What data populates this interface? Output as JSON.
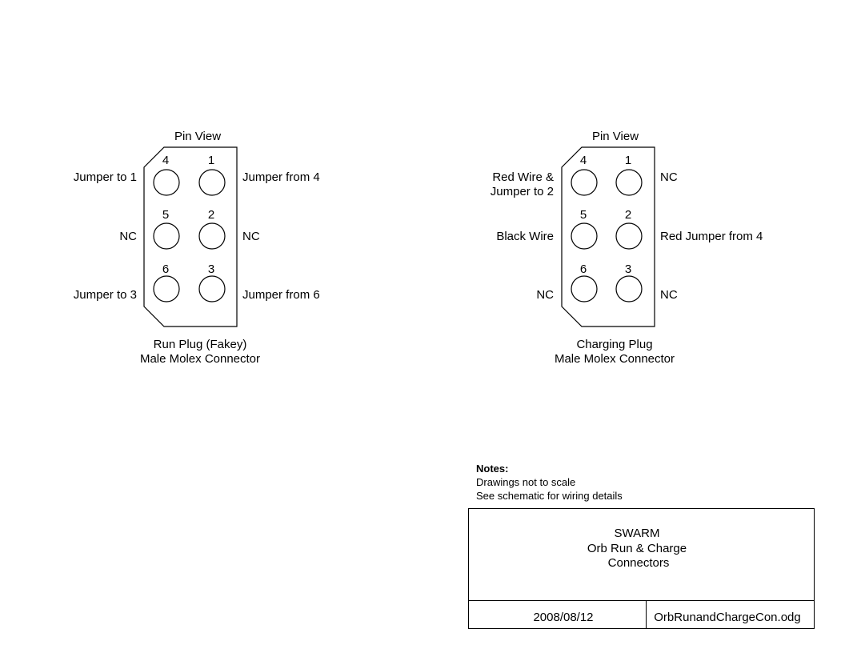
{
  "connectors": [
    {
      "header": "Pin View",
      "pins": {
        "p4": "4",
        "p1": "1",
        "p5": "5",
        "p2": "2",
        "p6": "6",
        "p3": "3"
      },
      "left_labels": {
        "row1": [
          "Jumper to 1"
        ],
        "row2": [
          "NC"
        ],
        "row3": [
          "Jumper to 3"
        ]
      },
      "right_labels": {
        "row1": "Jumper from 4",
        "row2": "NC",
        "row3": "Jumper from 6"
      },
      "caption": [
        "Run Plug (Fakey)",
        "Male Molex Connector"
      ]
    },
    {
      "header": "Pin View",
      "pins": {
        "p4": "4",
        "p1": "1",
        "p5": "5",
        "p2": "2",
        "p6": "6",
        "p3": "3"
      },
      "left_labels": {
        "row1": [
          "Red Wire &",
          "Jumper to 2"
        ],
        "row2": [
          "Black Wire"
        ],
        "row3": [
          "NC"
        ]
      },
      "right_labels": {
        "row1": "NC",
        "row2": "Red Jumper from 4",
        "row3": "NC"
      },
      "caption": [
        "Charging Plug",
        "Male Molex Connector"
      ]
    }
  ],
  "notes": {
    "title": "Notes:",
    "lines": [
      "Drawings not to scale",
      "See schematic for wiring details"
    ]
  },
  "title_block": {
    "title_lines": [
      "SWARM",
      "Orb Run & Charge",
      "Connectors"
    ],
    "date": "2008/08/12",
    "filename": "OrbRunandChargeCon.odg"
  }
}
